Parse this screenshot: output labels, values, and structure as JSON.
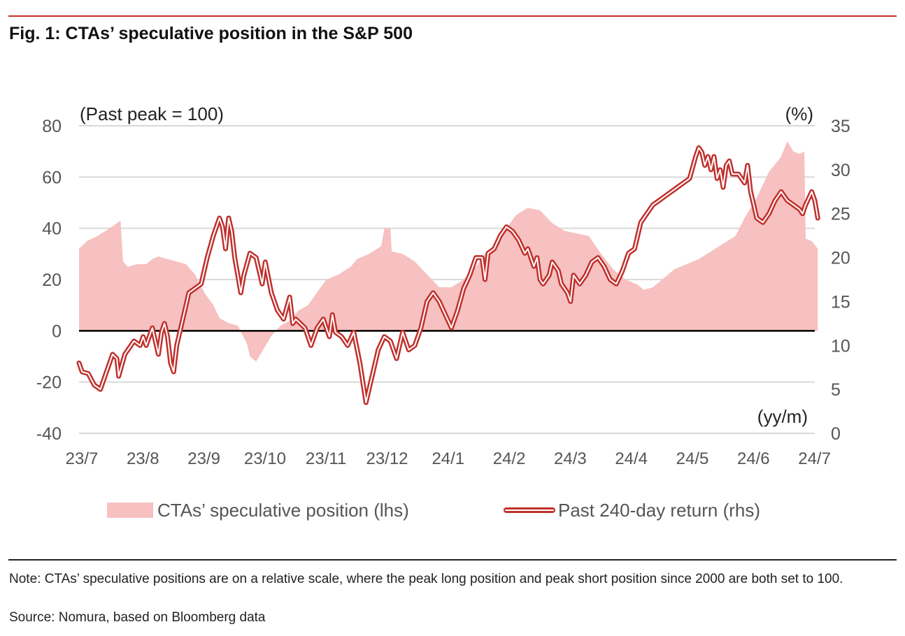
{
  "figure": {
    "title": "Fig. 1: CTAs’ speculative position in the S&P 500",
    "note": "Note: CTAs’ speculative positions are on a relative scale, where the peak long position and peak short position since 2000 are both set to 100.",
    "source": "Source: Nomura, based on Bloomberg data"
  },
  "chart_data": {
    "type": "area+line",
    "left_axis_label": "(Past peak = 100)",
    "right_axis_label": "(%)",
    "x_axis_label": "(yy/m)",
    "ylim_left": [
      -40,
      80
    ],
    "ylim_right": [
      0,
      35
    ],
    "y_ticks_left": [
      80,
      60,
      40,
      20,
      0,
      -20,
      -40
    ],
    "y_ticks_right": [
      35,
      30,
      25,
      20,
      15,
      10,
      5,
      0
    ],
    "x_ticks": [
      "23/7",
      "23/8",
      "23/9",
      "23/10",
      "23/11",
      "23/12",
      "24/1",
      "24/2",
      "24/3",
      "24/4",
      "24/5",
      "24/6",
      "24/7"
    ],
    "grid": "horizontal",
    "legend_placement": "bottom",
    "colors": {
      "area": "#f6c1c0",
      "line": "#c0302c",
      "zero_line": "#000000",
      "grid": "#d9d9d9",
      "accent_rule": "#c8312f"
    },
    "series": [
      {
        "name": "CTAs’ speculative position (lhs)",
        "axis": "left",
        "style": "area",
        "points": [
          [
            0.0,
            32
          ],
          [
            0.13,
            35
          ],
          [
            0.3,
            37
          ],
          [
            0.5,
            40
          ],
          [
            0.62,
            42
          ],
          [
            0.68,
            43
          ],
          [
            0.72,
            27
          ],
          [
            0.8,
            25
          ],
          [
            0.95,
            26
          ],
          [
            1.1,
            26
          ],
          [
            1.2,
            28
          ],
          [
            1.3,
            29
          ],
          [
            1.45,
            28
          ],
          [
            1.6,
            27
          ],
          [
            1.75,
            26
          ],
          [
            1.9,
            22
          ],
          [
            2.05,
            15
          ],
          [
            2.2,
            10
          ],
          [
            2.3,
            5
          ],
          [
            2.45,
            3
          ],
          [
            2.6,
            2
          ],
          [
            2.75,
            -5
          ],
          [
            2.8,
            -10
          ],
          [
            2.9,
            -12
          ],
          [
            3.0,
            -8
          ],
          [
            3.15,
            -2
          ],
          [
            3.3,
            2
          ],
          [
            3.45,
            4
          ],
          [
            3.6,
            8
          ],
          [
            3.75,
            10
          ],
          [
            3.9,
            15
          ],
          [
            4.05,
            20
          ],
          [
            4.25,
            22
          ],
          [
            4.45,
            25
          ],
          [
            4.55,
            28
          ],
          [
            4.75,
            30
          ],
          [
            4.95,
            33
          ],
          [
            5.0,
            40
          ],
          [
            5.1,
            40
          ],
          [
            5.12,
            31
          ],
          [
            5.3,
            30
          ],
          [
            5.5,
            27
          ],
          [
            5.7,
            22
          ],
          [
            5.9,
            17
          ],
          [
            6.1,
            17
          ],
          [
            6.3,
            20
          ],
          [
            6.5,
            25
          ],
          [
            6.65,
            30
          ],
          [
            6.75,
            32
          ],
          [
            6.85,
            36
          ],
          [
            7.0,
            40
          ],
          [
            7.15,
            45
          ],
          [
            7.35,
            48
          ],
          [
            7.55,
            47
          ],
          [
            7.75,
            42
          ],
          [
            7.95,
            39
          ],
          [
            8.15,
            38
          ],
          [
            8.35,
            37
          ],
          [
            8.55,
            30
          ],
          [
            8.75,
            24
          ],
          [
            8.95,
            20
          ],
          [
            9.15,
            18
          ],
          [
            9.25,
            16
          ],
          [
            9.4,
            17
          ],
          [
            9.55,
            20
          ],
          [
            9.75,
            24
          ],
          [
            9.95,
            26
          ],
          [
            10.15,
            28
          ],
          [
            10.35,
            31
          ],
          [
            10.55,
            34
          ],
          [
            10.75,
            37
          ],
          [
            10.9,
            44
          ],
          [
            11.1,
            52
          ],
          [
            11.3,
            62
          ],
          [
            11.5,
            68
          ],
          [
            11.6,
            74
          ],
          [
            11.7,
            70
          ],
          [
            11.8,
            69
          ],
          [
            11.88,
            70
          ],
          [
            11.9,
            36
          ],
          [
            12.0,
            35
          ],
          [
            12.1,
            32
          ]
        ]
      },
      {
        "name": "Past 240-day return (rhs)",
        "axis": "right",
        "style": "double-line",
        "points": [
          [
            0.0,
            8
          ],
          [
            0.05,
            7
          ],
          [
            0.15,
            6.8
          ],
          [
            0.25,
            5.5
          ],
          [
            0.35,
            5
          ],
          [
            0.45,
            7
          ],
          [
            0.55,
            9
          ],
          [
            0.62,
            8.5
          ],
          [
            0.65,
            6.5
          ],
          [
            0.75,
            9
          ],
          [
            0.9,
            10.5
          ],
          [
            1.0,
            10
          ],
          [
            1.05,
            11
          ],
          [
            1.1,
            10
          ],
          [
            1.2,
            12
          ],
          [
            1.25,
            10.5
          ],
          [
            1.3,
            9
          ],
          [
            1.35,
            11.5
          ],
          [
            1.4,
            12.5
          ],
          [
            1.45,
            11
          ],
          [
            1.5,
            8
          ],
          [
            1.55,
            7
          ],
          [
            1.6,
            10
          ],
          [
            1.7,
            13
          ],
          [
            1.8,
            16
          ],
          [
            1.9,
            16.5
          ],
          [
            2.0,
            17
          ],
          [
            2.1,
            20
          ],
          [
            2.2,
            22.5
          ],
          [
            2.3,
            24.5
          ],
          [
            2.35,
            23.5
          ],
          [
            2.4,
            21
          ],
          [
            2.45,
            24.5
          ],
          [
            2.5,
            23
          ],
          [
            2.55,
            20
          ],
          [
            2.6,
            18
          ],
          [
            2.65,
            16
          ],
          [
            2.7,
            18
          ],
          [
            2.8,
            20.5
          ],
          [
            2.9,
            20
          ],
          [
            3.0,
            17
          ],
          [
            3.05,
            19.5
          ],
          [
            3.15,
            16
          ],
          [
            3.25,
            14
          ],
          [
            3.35,
            13
          ],
          [
            3.45,
            15.5
          ],
          [
            3.5,
            12.5
          ],
          [
            3.55,
            13
          ],
          [
            3.7,
            12
          ],
          [
            3.8,
            10
          ],
          [
            3.9,
            12
          ],
          [
            4.0,
            13
          ],
          [
            4.1,
            11
          ],
          [
            4.15,
            13.5
          ],
          [
            4.2,
            11.5
          ],
          [
            4.3,
            11
          ],
          [
            4.4,
            10
          ],
          [
            4.5,
            11.5
          ],
          [
            4.6,
            8
          ],
          [
            4.7,
            3.5
          ],
          [
            4.8,
            6.5
          ],
          [
            4.9,
            9.5
          ],
          [
            5.0,
            11
          ],
          [
            5.1,
            10.5
          ],
          [
            5.2,
            8.5
          ],
          [
            5.3,
            11.5
          ],
          [
            5.4,
            9.5
          ],
          [
            5.5,
            10
          ],
          [
            5.6,
            12
          ],
          [
            5.7,
            15
          ],
          [
            5.8,
            16
          ],
          [
            5.9,
            15
          ],
          [
            6.0,
            13.5
          ],
          [
            6.1,
            12
          ],
          [
            6.2,
            14
          ],
          [
            6.3,
            16.5
          ],
          [
            6.4,
            18
          ],
          [
            6.5,
            20
          ],
          [
            6.6,
            20
          ],
          [
            6.65,
            17.5
          ],
          [
            6.7,
            20.5
          ],
          [
            6.8,
            21
          ],
          [
            6.9,
            22.5
          ],
          [
            7.0,
            23.5
          ],
          [
            7.1,
            23
          ],
          [
            7.2,
            22
          ],
          [
            7.3,
            20.5
          ],
          [
            7.35,
            21
          ],
          [
            7.45,
            19
          ],
          [
            7.5,
            20
          ],
          [
            7.55,
            17.5
          ],
          [
            7.6,
            17
          ],
          [
            7.7,
            18
          ],
          [
            7.75,
            19.5
          ],
          [
            7.85,
            18.5
          ],
          [
            7.9,
            17
          ],
          [
            8.0,
            16
          ],
          [
            8.05,
            15
          ],
          [
            8.1,
            18
          ],
          [
            8.2,
            17
          ],
          [
            8.3,
            18
          ],
          [
            8.4,
            19.5
          ],
          [
            8.5,
            20
          ],
          [
            8.6,
            19
          ],
          [
            8.7,
            17.5
          ],
          [
            8.8,
            17
          ],
          [
            8.9,
            18.5
          ],
          [
            9.0,
            20.5
          ],
          [
            9.1,
            21
          ],
          [
            9.2,
            24
          ],
          [
            9.3,
            25
          ],
          [
            9.4,
            26
          ],
          [
            9.5,
            26.5
          ],
          [
            9.6,
            27
          ],
          [
            9.7,
            27.5
          ],
          [
            9.8,
            28
          ],
          [
            9.9,
            28.5
          ],
          [
            10.0,
            29
          ],
          [
            10.1,
            31.5
          ],
          [
            10.15,
            32.5
          ],
          [
            10.2,
            32
          ],
          [
            10.25,
            30.5
          ],
          [
            10.3,
            31.5
          ],
          [
            10.35,
            30
          ],
          [
            10.4,
            31.5
          ],
          [
            10.45,
            29
          ],
          [
            10.5,
            30
          ],
          [
            10.55,
            28
          ],
          [
            10.6,
            30.5
          ],
          [
            10.65,
            31
          ],
          [
            10.7,
            29.5
          ],
          [
            10.8,
            29.5
          ],
          [
            10.9,
            28.5
          ],
          [
            10.95,
            30.5
          ],
          [
            11.0,
            27.5
          ],
          [
            11.05,
            26
          ],
          [
            11.1,
            24.5
          ],
          [
            11.2,
            24
          ],
          [
            11.3,
            25
          ],
          [
            11.4,
            26.5
          ],
          [
            11.5,
            27.5
          ],
          [
            11.6,
            26.5
          ],
          [
            11.7,
            26
          ],
          [
            11.8,
            25.5
          ],
          [
            11.85,
            25
          ],
          [
            11.9,
            26
          ],
          [
            12.0,
            27.5
          ],
          [
            12.05,
            26.5
          ],
          [
            12.1,
            24.5
          ]
        ]
      }
    ]
  },
  "legend": {
    "items": [
      {
        "label": "CTAs’ speculative position (lhs)"
      },
      {
        "label": "Past 240-day return (rhs)"
      }
    ]
  }
}
